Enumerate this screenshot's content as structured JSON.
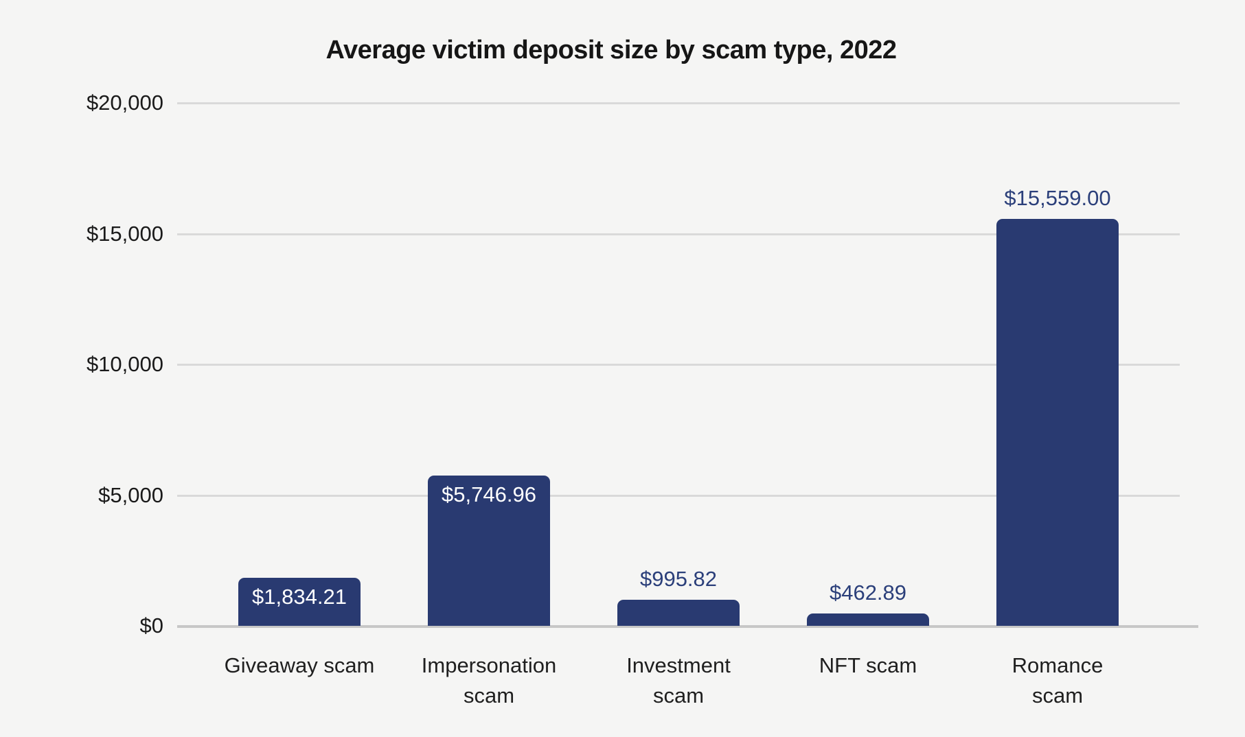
{
  "chart_data": {
    "type": "bar",
    "title": "Average victim deposit size by scam type, 2022",
    "categories": [
      "Giveaway scam",
      "Impersonation scam",
      "Investment scam",
      "NFT scam",
      "Romance scam"
    ],
    "category_label_lines": [
      [
        "Giveaway scam"
      ],
      [
        "Impersonation",
        "scam"
      ],
      [
        "Investment",
        "scam"
      ],
      [
        "NFT scam"
      ],
      [
        "Romance",
        "scam"
      ]
    ],
    "values": [
      1834.21,
      5746.96,
      995.82,
      462.89,
      15559.0
    ],
    "value_labels": [
      "$1,834.21",
      "$5,746.96",
      "$995.82",
      "$462.89",
      "$15,559.00"
    ],
    "value_label_positions": [
      "inside",
      "inside",
      "above",
      "above",
      "above"
    ],
    "xlabel": "",
    "ylabel": "",
    "ylim": [
      0,
      20000
    ],
    "y_ticks": [
      {
        "value": 0,
        "label": "$0"
      },
      {
        "value": 5000,
        "label": "$5,000"
      },
      {
        "value": 10000,
        "label": "$10,000"
      },
      {
        "value": 15000,
        "label": "$15,000"
      },
      {
        "value": 20000,
        "label": "$20,000"
      }
    ],
    "grid": "horizontal-only",
    "legend": "none",
    "colors": {
      "bar": "#293a71",
      "value_label_inside": "#ffffff",
      "value_label_above": "#2b3f7a",
      "gridline": "#d9d9d9",
      "baseline": "#c7c7c7",
      "title": "#161616",
      "axis_text": "#1a1a1a",
      "background": "#f5f5f4"
    }
  }
}
